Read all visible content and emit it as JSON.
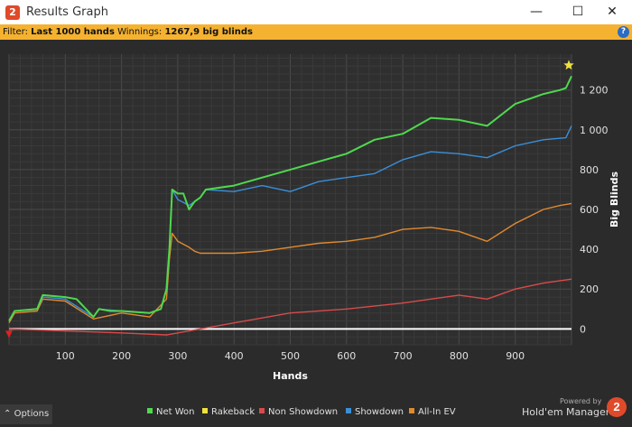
{
  "window": {
    "title": "Results Graph",
    "app_icon_text": "2",
    "min_glyph": "—",
    "max_glyph": "☐",
    "close_glyph": "✕"
  },
  "filter": {
    "prefix": "Filter:",
    "value": "Last 1000 hands",
    "winnings_label": "Winnings:",
    "winnings_value": "1267,9 big blinds",
    "help_glyph": "?"
  },
  "footer": {
    "options_label": "Options",
    "options_glyph": "⌃",
    "powered_by": "Powered by",
    "brand": "Hold'em Manager",
    "brand_logo": "2"
  },
  "chart_data": {
    "type": "line",
    "xlabel": "Hands",
    "ylabel": "Big Blinds",
    "xlim": [
      0,
      1000
    ],
    "ylim": [
      -80,
      1380
    ],
    "x_ticks": [
      100,
      200,
      300,
      400,
      500,
      600,
      700,
      800,
      900
    ],
    "y_ticks": [
      0,
      200,
      400,
      600,
      800,
      1000,
      1200
    ],
    "y_tick_labels": [
      "0",
      "200",
      "400",
      "600",
      "800",
      "1 000",
      "1 200"
    ],
    "grid": true,
    "legend_position": "bottom",
    "series": [
      {
        "name": "Net Won",
        "color": "#4fd84f",
        "x": [
          0,
          10,
          50,
          60,
          100,
          120,
          150,
          160,
          180,
          200,
          250,
          270,
          280,
          285,
          290,
          300,
          310,
          320,
          330,
          340,
          350,
          400,
          450,
          500,
          550,
          600,
          650,
          700,
          750,
          800,
          850,
          900,
          920,
          950,
          980,
          990,
          995,
          1000
        ],
        "y": [
          40,
          90,
          100,
          170,
          160,
          150,
          60,
          100,
          90,
          90,
          80,
          100,
          200,
          400,
          700,
          680,
          680,
          600,
          640,
          660,
          700,
          720,
          760,
          800,
          840,
          880,
          950,
          980,
          1060,
          1050,
          1020,
          1130,
          1150,
          1180,
          1200,
          1210,
          1240,
          1270
        ]
      },
      {
        "name": "Rakeback",
        "color": "#f0e040",
        "x": [
          1000
        ],
        "y": [
          1270
        ]
      },
      {
        "name": "Non Showdown",
        "color": "#d94a4a",
        "x": [
          0,
          100,
          200,
          280,
          300,
          400,
          500,
          600,
          700,
          800,
          850,
          900,
          950,
          1000
        ],
        "y": [
          0,
          -10,
          -20,
          -30,
          -20,
          30,
          80,
          100,
          130,
          170,
          150,
          200,
          230,
          250
        ]
      },
      {
        "name": "Showdown",
        "color": "#3a8fd8",
        "x": [
          0,
          10,
          50,
          60,
          100,
          150,
          160,
          200,
          250,
          270,
          280,
          285,
          290,
          300,
          320,
          330,
          340,
          350,
          400,
          450,
          500,
          550,
          600,
          650,
          700,
          750,
          800,
          850,
          900,
          950,
          990,
          1000
        ],
        "y": [
          40,
          90,
          100,
          160,
          150,
          60,
          100,
          90,
          80,
          100,
          200,
          400,
          700,
          650,
          620,
          640,
          660,
          700,
          690,
          720,
          690,
          740,
          760,
          780,
          850,
          890,
          880,
          860,
          920,
          950,
          960,
          1020
        ]
      },
      {
        "name": "All-In EV",
        "color": "#e08a30",
        "x": [
          0,
          10,
          50,
          60,
          100,
          150,
          200,
          250,
          280,
          285,
          290,
          300,
          320,
          330,
          340,
          400,
          450,
          500,
          550,
          600,
          650,
          700,
          750,
          800,
          850,
          900,
          950,
          980,
          1000
        ],
        "y": [
          30,
          80,
          90,
          150,
          140,
          50,
          80,
          60,
          150,
          350,
          480,
          440,
          410,
          390,
          380,
          380,
          390,
          410,
          430,
          440,
          460,
          500,
          510,
          490,
          440,
          530,
          600,
          620,
          630
        ]
      }
    ]
  }
}
